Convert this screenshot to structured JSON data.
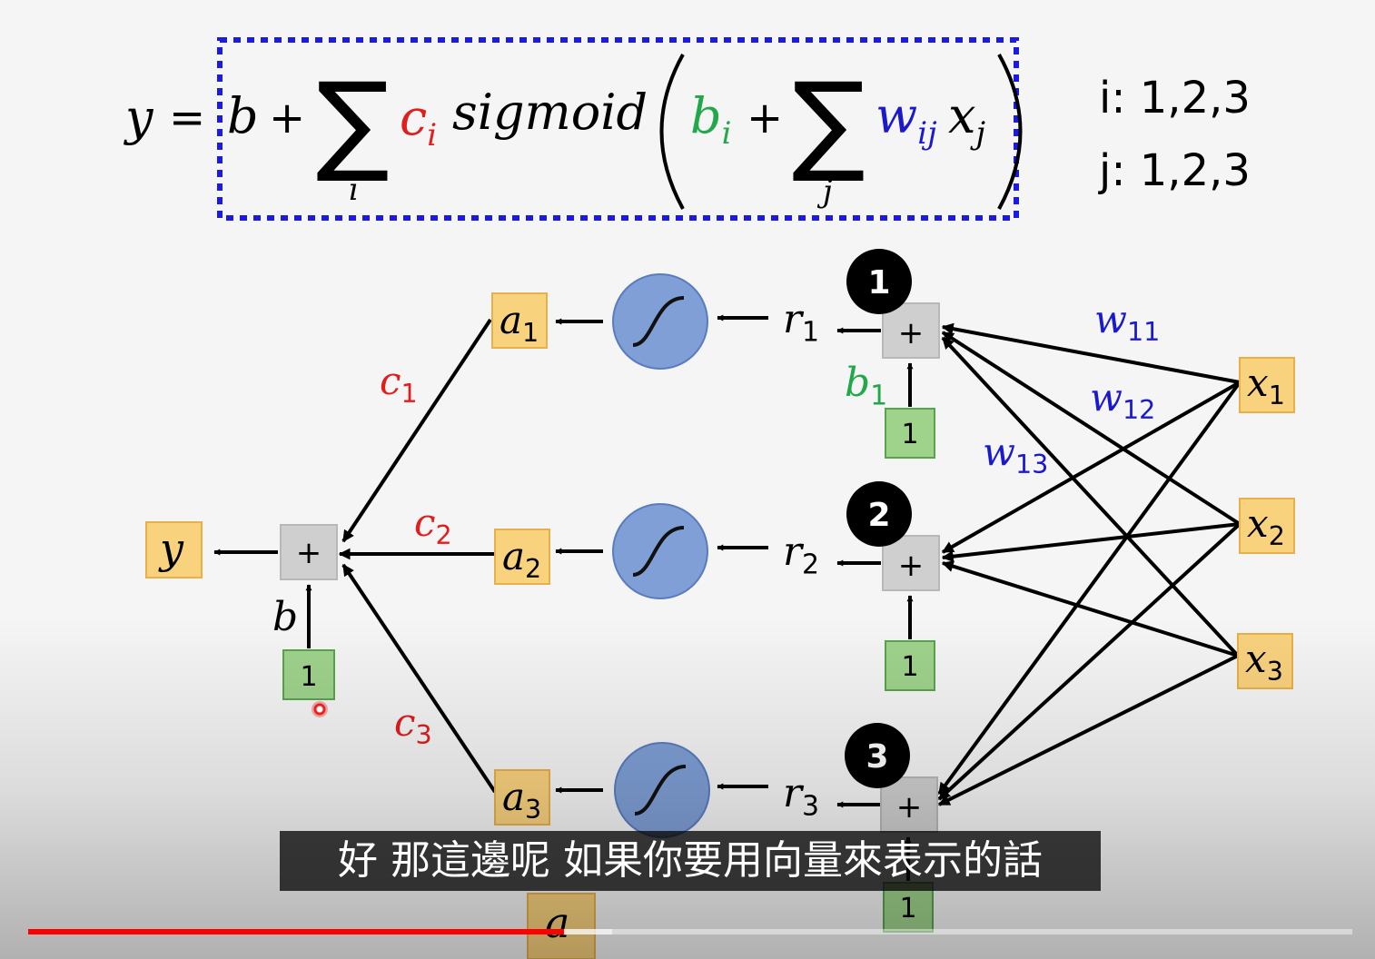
{
  "formula": {
    "y": "y",
    "eq": "=",
    "b": "b",
    "plus": "+",
    "sum_index_i": "i",
    "sum_index_j": "j",
    "c": "c",
    "c_sub": "i",
    "sigmoid": "sigmoid",
    "b_inner": "b",
    "b_inner_sub": "i",
    "w": "w",
    "w_sub": "ij",
    "x": "x",
    "x_sub": "j",
    "range_i": "i: 1,2,3",
    "range_j": "j: 1,2,3"
  },
  "diagram": {
    "badges": [
      "1",
      "2",
      "3"
    ],
    "plus_symbol": "+",
    "bias_input": "1",
    "output": {
      "base": "y"
    },
    "final_bias": {
      "base": "b",
      "sub": ""
    },
    "a": [
      {
        "base": "a",
        "sub": "1"
      },
      {
        "base": "a",
        "sub": "2"
      },
      {
        "base": "a",
        "sub": "3"
      }
    ],
    "r": [
      {
        "base": "r",
        "sub": "1"
      },
      {
        "base": "r",
        "sub": "2"
      },
      {
        "base": "r",
        "sub": "3"
      }
    ],
    "c": [
      {
        "base": "c",
        "sub": "1"
      },
      {
        "base": "c",
        "sub": "2"
      },
      {
        "base": "c",
        "sub": "3"
      }
    ],
    "x": [
      {
        "base": "x",
        "sub": "1"
      },
      {
        "base": "x",
        "sub": "2"
      },
      {
        "base": "x",
        "sub": "3"
      }
    ],
    "b1": {
      "base": "b",
      "sub": "1"
    },
    "w": [
      {
        "base": "w",
        "sub": "11"
      },
      {
        "base": "w",
        "sub": "12"
      },
      {
        "base": "w",
        "sub": "13"
      }
    ],
    "partial_label": "a"
  },
  "colors": {
    "dashed_box": "#1a1ae0",
    "c_red": "#e01e1e",
    "b_green": "#22a84a",
    "w_blue": "#1a1acd",
    "orange_box": "#f9d27e",
    "orange_border": "#e8b04a",
    "green_box": "#9fd38c",
    "green_border": "#5aa34d",
    "gray_box": "#cfcfcf",
    "sigmoid_fill": "#7f9fd6",
    "sigmoid_stroke": "#5a7cbf",
    "progress_red": "#ff0000"
  },
  "subtitle": "好 那這邊呢 如果你要用向量來表示的話",
  "player": {
    "progress": 0.405,
    "buffered": 0.441
  }
}
